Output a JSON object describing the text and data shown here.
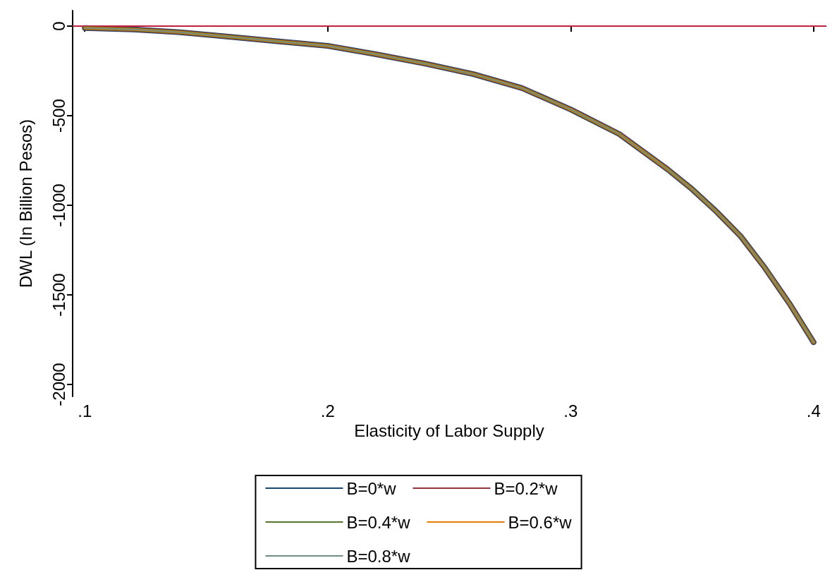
{
  "chart_data": {
    "type": "line",
    "xlabel": "Elasticity of Labor Supply",
    "ylabel": "DWL (In Billion Pesos)",
    "x": [
      0.1,
      0.12,
      0.14,
      0.16,
      0.18,
      0.2,
      0.22,
      0.24,
      0.26,
      0.28,
      0.3,
      0.32,
      0.34,
      0.35,
      0.36,
      0.37,
      0.38,
      0.39,
      0.4
    ],
    "series": [
      {
        "name": "B=0*w",
        "color": "#1a476f",
        "values": [
          -10,
          -18,
          -35,
          -60,
          -85,
          -110,
          -157,
          -209,
          -268,
          -346,
          -465,
          -602,
          -800,
          -910,
          -1035,
          -1173,
          -1350,
          -1547,
          -1764
        ]
      },
      {
        "name": "B=0.2*w",
        "color": "#90353b",
        "values": [
          -10,
          -18,
          -35,
          -60,
          -85,
          -110,
          -157,
          -209,
          -268,
          -346,
          -465,
          -602,
          -800,
          -910,
          -1035,
          -1173,
          -1350,
          -1547,
          -1764
        ]
      },
      {
        "name": "B=0.4*w",
        "color": "#55752f",
        "values": [
          -10,
          -18,
          -35,
          -60,
          -85,
          -110,
          -157,
          -209,
          -268,
          -346,
          -465,
          -602,
          -800,
          -910,
          -1035,
          -1173,
          -1350,
          -1547,
          -1764
        ]
      },
      {
        "name": "B=0.6*w",
        "color": "#e37e00",
        "values": [
          -10,
          -18,
          -35,
          -60,
          -85,
          -110,
          -157,
          -209,
          -268,
          -346,
          -465,
          -602,
          -800,
          -910,
          -1035,
          -1173,
          -1350,
          -1547,
          -1764
        ]
      },
      {
        "name": "B=0.8*w",
        "color": "#6e8e84",
        "values": [
          -10,
          -18,
          -35,
          -60,
          -85,
          -110,
          -157,
          -209,
          -268,
          -346,
          -465,
          -602,
          -800,
          -910,
          -1035,
          -1173,
          -1350,
          -1547,
          -1764
        ]
      }
    ],
    "xlim": [
      0.095,
      0.405
    ],
    "xticks": [
      {
        "value": 0.1,
        "label": ".1"
      },
      {
        "value": 0.2,
        "label": ".2"
      },
      {
        "value": 0.3,
        "label": ".3"
      },
      {
        "value": 0.4,
        "label": ".4"
      }
    ],
    "ylim": [
      -2067,
      87
    ],
    "yticks": [
      0,
      -500,
      -1000,
      -1500,
      -2000
    ],
    "ref_lines": [
      {
        "axis": "y",
        "value": 0,
        "color": "#c0203f"
      }
    ],
    "grid": false,
    "legend": "bottom",
    "marker": "none",
    "line_style": "solid"
  }
}
